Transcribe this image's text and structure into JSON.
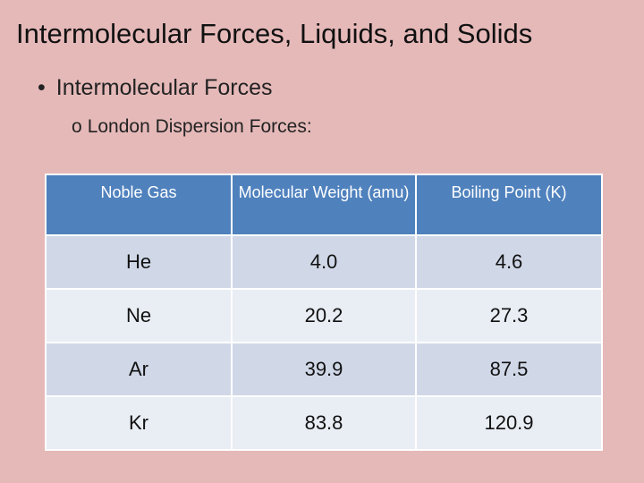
{
  "slide": {
    "title": "Intermolecular Forces, Liquids, and Solids",
    "bullet_marker": "•",
    "bullet": "Intermolecular Forces",
    "sub_marker": "o",
    "sub_bullet": "London Dispersion Forces:"
  },
  "table": {
    "headers": [
      "Noble Gas",
      "Molecular Weight (amu)",
      "Boiling Point (K)"
    ],
    "rows": [
      [
        "He",
        "4.0",
        "4.6"
      ],
      [
        "Ne",
        "20.2",
        "27.3"
      ],
      [
        "Ar",
        "39.9",
        "87.5"
      ],
      [
        "Kr",
        "83.8",
        "120.9"
      ]
    ]
  },
  "colors": {
    "background": "#e6b9b9",
    "header_fill": "#4f81bd",
    "row_band_dark": "#d0d8e8",
    "row_band_light": "#e9edf4"
  }
}
